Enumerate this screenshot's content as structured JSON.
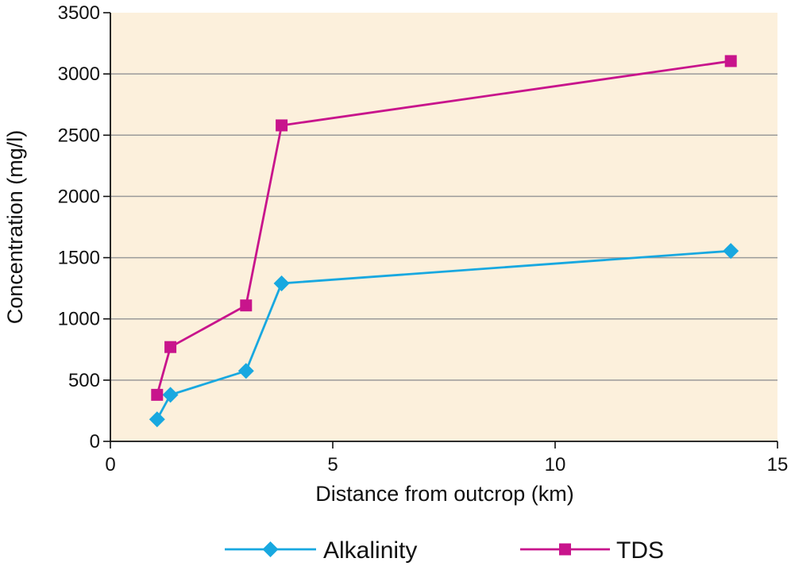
{
  "chart_data": {
    "type": "line",
    "title": "",
    "xlabel": "Distance from outcrop (km)",
    "ylabel": "Concentration (mg/l)",
    "xlim": [
      0,
      15
    ],
    "ylim": [
      0,
      3500
    ],
    "xticks": [
      0,
      5,
      10,
      15
    ],
    "yticks": [
      0,
      500,
      1000,
      1500,
      2000,
      2500,
      3000,
      3500
    ],
    "grid": "horizontal",
    "legend_position": "bottom",
    "plot_background": "#fcf0dc",
    "series": [
      {
        "name": "Alkalinity",
        "color": "#18a8e0",
        "marker": "diamond",
        "x": [
          1.05,
          1.35,
          3.05,
          3.85,
          13.95
        ],
        "y": [
          180,
          380,
          575,
          1290,
          1555
        ]
      },
      {
        "name": "TDS",
        "color": "#c8148c",
        "marker": "square",
        "x": [
          1.05,
          1.35,
          3.05,
          3.85,
          13.95
        ],
        "y": [
          380,
          770,
          1110,
          2580,
          3105
        ]
      }
    ]
  }
}
